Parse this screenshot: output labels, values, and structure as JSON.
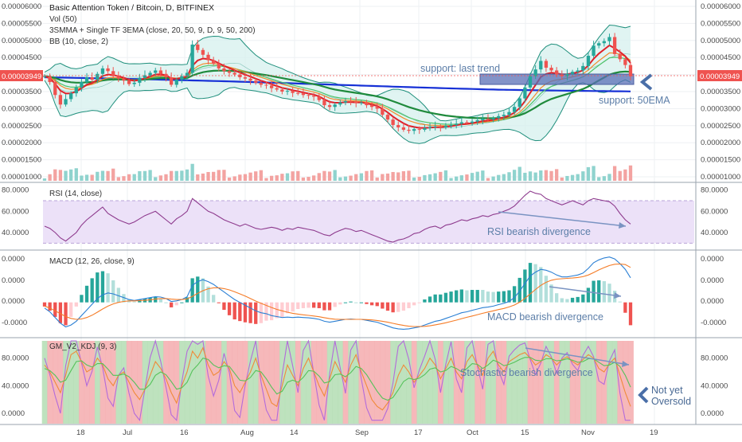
{
  "header": {
    "title": "Basic Attention Token / Bitcoin, D, BITFINEX",
    "vol_label": "Vol (50)",
    "ma_label": "3SMMA + Single TF 3EMA (close, 20, 50, 9, D, 9, 50, 200)",
    "bb_label": "BB (10, close, 2)"
  },
  "colors": {
    "up": "#26a69a",
    "down": "#ef5350",
    "grid": "#eef0f3",
    "rsi_band": "#e6d8f7",
    "rsi_line": "#8e3b8e",
    "macd_line": "#2a7fd4",
    "signal_line": "#f57c27",
    "stoch_k": "#b36bdb",
    "stoch_d": "#f08a3a",
    "stoch_j": "#55c25a",
    "bb_fill": "#d6f0ee",
    "bb_line": "#1f8f7c",
    "ema_blue": "#1630d6",
    "ema_green": "#1f8a3c",
    "ema_lightgreen": "#4ec36a",
    "ema_red": "#e0202a",
    "ema_orange": "#f28a2c",
    "annot": "#5c7ea8",
    "price_tag": "#ef5350"
  },
  "price_axis": {
    "ticks": [
      "0.00006000",
      "0.00005500",
      "0.00005000",
      "0.00004500",
      "0.00004000",
      "0.00003500",
      "0.00003000",
      "0.00002500",
      "0.00002000",
      "0.00001500",
      "0.00001000"
    ],
    "current_price": "0.00003949"
  },
  "rsi": {
    "label": "RSI (14, close)",
    "ticks": [
      "80.0000",
      "60.0000",
      "40.0000"
    ],
    "annotation": "RSI bearish divergence"
  },
  "macd": {
    "label": "MACD (12, 26, close, 9)",
    "ticks": [
      "0.0000",
      "0.0000",
      "0.0000",
      "-0.0000"
    ],
    "annotation": "MACD bearish divergence"
  },
  "kdj": {
    "label": "GM_V2_KDJ (9, 3)",
    "ticks": [
      "80.0000",
      "40.0000",
      "0.0000"
    ],
    "annotation": "Stochastic bearish divergence"
  },
  "annotations": {
    "support_trend": "support: last trend",
    "support_ema": "support: 50EMA",
    "not_oversold_1": "Not yet",
    "not_oversold_2": "Oversold"
  },
  "time_axis": {
    "labels": [
      "18",
      "Jul",
      "16",
      "Aug",
      "14",
      "Sep",
      "17",
      "Oct",
      "15",
      "Nov",
      "19"
    ]
  },
  "chart_data": {
    "type": "line",
    "title": "Basic Attention Token / Bitcoin, D, BITFINEX",
    "x_labels": [
      "18",
      "Jul",
      "16",
      "Aug",
      "14",
      "Sep",
      "17",
      "Oct",
      "15",
      "Nov",
      "19"
    ],
    "price_range": [
      1e-05,
      6e-05
    ],
    "close_series": [
      3.95e-05,
      3.78e-05,
      3.4e-05,
      3.12e-05,
      3.28e-05,
      3.45e-05,
      3.62e-05,
      3.78e-05,
      3.92e-05,
      3.85e-05,
      4.02e-05,
      4.18e-05,
      4.1e-05,
      3.95e-05,
      3.88e-05,
      3.82e-05,
      3.72e-05,
      3.76e-05,
      3.9e-05,
      3.98e-05,
      4.05e-05,
      4.12e-05,
      4.02e-05,
      3.92e-05,
      3.7e-05,
      3.85e-05,
      3.95e-05,
      4.05e-05,
      4.88e-05,
      4.72e-05,
      4.58e-05,
      4.42e-05,
      4.32e-05,
      4.18e-05,
      4.1e-05,
      4.05e-05,
      4e-05,
      3.92e-05,
      3.88e-05,
      3.82e-05,
      3.76e-05,
      3.7e-05,
      3.68e-05,
      3.6e-05,
      3.56e-05,
      3.5e-05,
      3.52e-05,
      3.46e-05,
      3.45e-05,
      3.4e-05,
      3.38e-05,
      3.35e-05,
      3.25e-05,
      3.1e-05,
      3.05e-05,
      3.12e-05,
      3.18e-05,
      3.22e-05,
      3.2e-05,
      3.16e-05,
      3.18e-05,
      3.1e-05,
      3.05e-05,
      3e-05,
      2.82e-05,
      2.68e-05,
      2.52e-05,
      2.45e-05,
      2.38e-05,
      2.35e-05,
      2.4e-05,
      2.38e-05,
      2.43e-05,
      2.46e-05,
      2.48e-05,
      2.45e-05,
      2.5e-05,
      2.52e-05,
      2.56e-05,
      2.6e-05,
      2.58e-05,
      2.62e-05,
      2.66e-05,
      2.7e-05,
      2.68e-05,
      2.72e-05,
      2.78e-05,
      2.82e-05,
      2.9e-05,
      3.05e-05,
      3.3e-05,
      3.62e-05,
      3.95e-05,
      4.15e-05,
      4.4e-05,
      4.2e-05,
      4.12e-05,
      4e-05,
      3.95e-05,
      4.02e-05,
      4.08e-05,
      4.12e-05,
      4.25e-05,
      4.55e-05,
      4.85e-05,
      4.92e-05,
      4.98e-05,
      5.1e-05,
      4.6e-05,
      4.45e-05,
      4.28e-05,
      3.95e-05
    ],
    "rsi_series": [
      46,
      44,
      40,
      35,
      32,
      36,
      40,
      47,
      52,
      56,
      60,
      64,
      58,
      55,
      52,
      50,
      48,
      50,
      53,
      56,
      58,
      60,
      56,
      52,
      48,
      53,
      56,
      60,
      72,
      68,
      64,
      60,
      58,
      55,
      52,
      50,
      48,
      46,
      48,
      46,
      44,
      43,
      44,
      45,
      44,
      42,
      44,
      43,
      45,
      44,
      43,
      42,
      40,
      38,
      37,
      40,
      42,
      44,
      43,
      41,
      42,
      40,
      38,
      36,
      34,
      32,
      31,
      33,
      34,
      36,
      39,
      40,
      43,
      45,
      46,
      44,
      47,
      48,
      50,
      52,
      51,
      53,
      54,
      56,
      55,
      57,
      58,
      60,
      62,
      65,
      70,
      75,
      79,
      77,
      76,
      72,
      70,
      68,
      66,
      68,
      70,
      68,
      66,
      70,
      72,
      71,
      70,
      69,
      65,
      58,
      52,
      48
    ],
    "rsi_range": [
      25,
      85
    ],
    "macd_series": [
      -0.3,
      -0.5,
      -0.8,
      -1.1,
      -1.3,
      -1.2,
      -1.0,
      -0.7,
      -0.4,
      -0.1,
      0.2,
      0.4,
      0.5,
      0.45,
      0.35,
      0.25,
      0.15,
      0.1,
      0.15,
      0.2,
      0.25,
      0.3,
      0.28,
      0.2,
      0.05,
      0.08,
      0.15,
      0.3,
      0.9,
      1.1,
      1.2,
      1.1,
      0.95,
      0.75,
      0.55,
      0.35,
      0.15,
      0.0,
      -0.15,
      -0.3,
      -0.45,
      -0.55,
      -0.6,
      -0.7,
      -0.75,
      -0.8,
      -0.78,
      -0.8,
      -0.78,
      -0.8,
      -0.82,
      -0.85,
      -0.9,
      -1.0,
      -1.05,
      -1.0,
      -0.95,
      -0.9,
      -0.88,
      -0.9,
      -0.9,
      -0.95,
      -1.0,
      -1.05,
      -1.15,
      -1.25,
      -1.35,
      -1.4,
      -1.42,
      -1.4,
      -1.35,
      -1.3,
      -1.2,
      -1.1,
      -1.0,
      -0.95,
      -0.85,
      -0.75,
      -0.65,
      -0.55,
      -0.5,
      -0.42,
      -0.35,
      -0.28,
      -0.25,
      -0.2,
      -0.12,
      -0.05,
      0.05,
      0.25,
      0.6,
      1.0,
      1.4,
      1.6,
      1.75,
      1.7,
      1.6,
      1.45,
      1.35,
      1.35,
      1.4,
      1.45,
      1.55,
      1.8,
      2.1,
      2.25,
      2.35,
      2.4,
      2.3,
      2.05,
      1.75,
      1.3
    ],
    "signal_series": [
      -0.2,
      -0.3,
      -0.45,
      -0.6,
      -0.75,
      -0.85,
      -0.9,
      -0.88,
      -0.8,
      -0.68,
      -0.52,
      -0.35,
      -0.2,
      -0.08,
      0.0,
      0.05,
      0.08,
      0.08,
      0.09,
      0.11,
      0.14,
      0.17,
      0.2,
      0.2,
      0.17,
      0.15,
      0.15,
      0.18,
      0.32,
      0.48,
      0.62,
      0.72,
      0.77,
      0.77,
      0.73,
      0.66,
      0.56,
      0.45,
      0.33,
      0.2,
      0.07,
      -0.05,
      -0.16,
      -0.27,
      -0.37,
      -0.45,
      -0.52,
      -0.58,
      -0.62,
      -0.66,
      -0.69,
      -0.72,
      -0.76,
      -0.81,
      -0.86,
      -0.89,
      -0.9,
      -0.9,
      -0.9,
      -0.9,
      -0.9,
      -0.91,
      -0.93,
      -0.96,
      -1.0,
      -1.05,
      -1.11,
      -1.17,
      -1.22,
      -1.26,
      -1.28,
      -1.28,
      -1.27,
      -1.24,
      -1.19,
      -1.14,
      -1.08,
      -1.01,
      -0.94,
      -0.86,
      -0.79,
      -0.72,
      -0.65,
      -0.58,
      -0.51,
      -0.45,
      -0.38,
      -0.32,
      -0.24,
      -0.14,
      0.01,
      0.21,
      0.45,
      0.68,
      0.9,
      1.06,
      1.17,
      1.23,
      1.25,
      1.27,
      1.29,
      1.32,
      1.36,
      1.45,
      1.58,
      1.72,
      1.84,
      1.95,
      2.02,
      2.03,
      2.0,
      1.85
    ],
    "macd_range": [
      -1.7,
      2.6
    ],
    "kdj_k": [
      70,
      60,
      45,
      30,
      55,
      85,
      90,
      75,
      60,
      65,
      80,
      70,
      50,
      40,
      55,
      60,
      45,
      30,
      20,
      35,
      55,
      75,
      65,
      50,
      30,
      15,
      40,
      60,
      90,
      80,
      95,
      70,
      55,
      60,
      75,
      65,
      40,
      30,
      45,
      60,
      80,
      55,
      35,
      15,
      10,
      40,
      70,
      55,
      40,
      65,
      80,
      60,
      40,
      25,
      50,
      75,
      60,
      45,
      70,
      85,
      60,
      40,
      20,
      10,
      5,
      15,
      30,
      55,
      70,
      60,
      45,
      55,
      65,
      80,
      70,
      50,
      65,
      80,
      60,
      50,
      75,
      85,
      70,
      55,
      80,
      90,
      70,
      60,
      75,
      80,
      85,
      88,
      80,
      70,
      75,
      85,
      80,
      70,
      78,
      82,
      75,
      70,
      78,
      85,
      80,
      65,
      60,
      72,
      80,
      55,
      30,
      10
    ],
    "kdj_d": [
      65,
      62,
      55,
      45,
      48,
      62,
      75,
      76,
      70,
      67,
      72,
      72,
      64,
      55,
      55,
      57,
      53,
      45,
      35,
      35,
      42,
      55,
      60,
      56,
      46,
      35,
      37,
      45,
      62,
      70,
      80,
      78,
      70,
      66,
      69,
      68,
      58,
      48,
      47,
      52,
      62,
      60,
      50,
      38,
      28,
      32,
      45,
      48,
      45,
      52,
      62,
      61,
      54,
      44,
      46,
      56,
      57,
      53,
      59,
      68,
      65,
      56,
      44,
      32,
      22,
      19,
      23,
      34,
      46,
      51,
      49,
      51,
      56,
      64,
      66,
      60,
      62,
      68,
      65,
      60,
      65,
      72,
      71,
      65,
      70,
      77,
      74,
      69,
      71,
      74,
      78,
      81,
      81,
      77,
      76,
      79,
      79,
      76,
      77,
      79,
      77,
      74,
      75,
      79,
      79,
      74,
      69,
      70,
      74,
      68,
      55,
      38
    ],
    "kdj_range": [
      -15,
      105
    ]
  }
}
